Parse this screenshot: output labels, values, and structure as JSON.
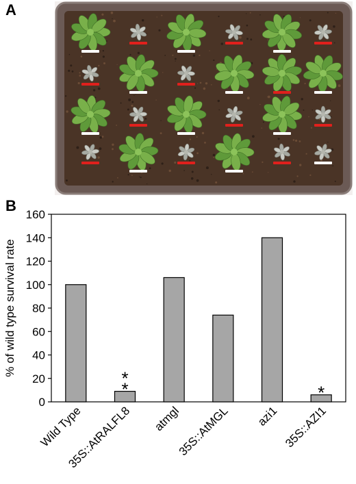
{
  "panels": {
    "a": "A",
    "b": "B"
  },
  "photo": {
    "tray_color": "#6b5a55",
    "soil_color": "#4a3426",
    "bar_colors": {
      "white": "#ffffff",
      "red": "#e0201c"
    },
    "plants": [
      {
        "row": 0,
        "col": 0,
        "type": "green",
        "bar": "white"
      },
      {
        "row": 0,
        "col": 1,
        "type": "dead",
        "bar": "red"
      },
      {
        "row": 0,
        "col": 2,
        "type": "green",
        "bar": "white"
      },
      {
        "row": 0,
        "col": 3,
        "type": "dead",
        "bar": "red"
      },
      {
        "row": 0,
        "col": 4,
        "type": "green",
        "bar": "white"
      },
      {
        "row": 0,
        "col": 5,
        "type": "dead",
        "bar": "red"
      },
      {
        "row": 1,
        "col": 0,
        "type": "dead",
        "bar": "red"
      },
      {
        "row": 1,
        "col": 1,
        "type": "green",
        "bar": "white"
      },
      {
        "row": 1,
        "col": 2,
        "type": "dead",
        "bar": "red"
      },
      {
        "row": 1,
        "col": 3,
        "type": "green",
        "bar": "white"
      },
      {
        "row": 1,
        "col": 4,
        "type": "green",
        "bar": "red"
      },
      {
        "row": 1,
        "col": 5,
        "type": "green",
        "bar": "white"
      },
      {
        "row": 2,
        "col": 0,
        "type": "green",
        "bar": "white"
      },
      {
        "row": 2,
        "col": 1,
        "type": "dead",
        "bar": "red"
      },
      {
        "row": 2,
        "col": 2,
        "type": "green",
        "bar": "white"
      },
      {
        "row": 2,
        "col": 3,
        "type": "dead",
        "bar": "red"
      },
      {
        "row": 2,
        "col": 4,
        "type": "green",
        "bar": "white"
      },
      {
        "row": 2,
        "col": 5,
        "type": "dead",
        "bar": "red"
      },
      {
        "row": 3,
        "col": 0,
        "type": "dead",
        "bar": "red"
      },
      {
        "row": 3,
        "col": 1,
        "type": "green",
        "bar": "white"
      },
      {
        "row": 3,
        "col": 2,
        "type": "dead",
        "bar": "red"
      },
      {
        "row": 3,
        "col": 3,
        "type": "green",
        "bar": "white"
      },
      {
        "row": 3,
        "col": 4,
        "type": "dead",
        "bar": "red"
      },
      {
        "row": 3,
        "col": 5,
        "type": "dead",
        "bar": "white"
      }
    ]
  },
  "chart_data": {
    "type": "bar",
    "categories": [
      "Wild Type",
      "35S::AtRALFL8",
      "atmgl",
      "35S::AtMGL",
      "azi1",
      "35S::AZI1"
    ],
    "values": [
      100,
      9,
      106,
      74,
      140,
      6
    ],
    "ylabel": "% of wild type survival rate",
    "ylim": [
      0,
      160
    ],
    "yticks": [
      0,
      20,
      40,
      60,
      80,
      100,
      120,
      140,
      160
    ],
    "grid": false,
    "bar_color": "#a6a6a6",
    "annotations": [
      {
        "category": "35S::AtRALFL8",
        "text": "*"
      },
      {
        "category": "35S::AtRALFL8",
        "text": "*"
      },
      {
        "category": "35S::AZI1",
        "text": "*"
      }
    ]
  }
}
